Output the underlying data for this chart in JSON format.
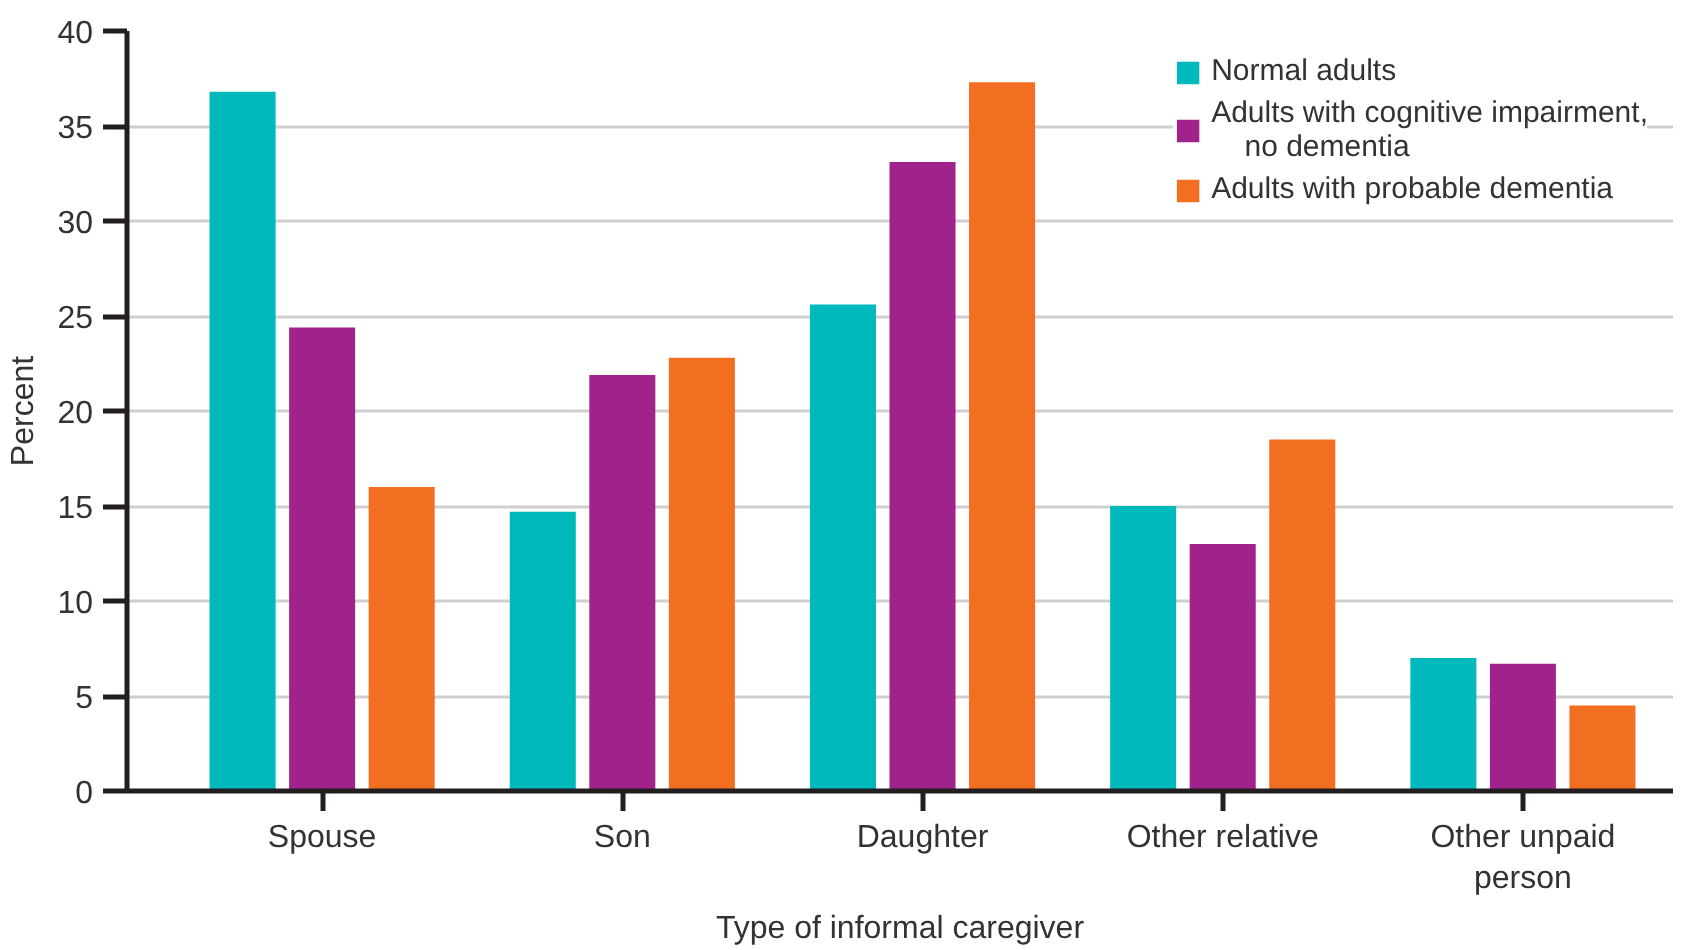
{
  "chart_data": {
    "type": "bar",
    "xlabel": "Type of informal caregiver",
    "ylabel": "Percent",
    "categories": [
      "Spouse",
      "Son",
      "Daughter",
      "Other relative",
      "Other unpaid person"
    ],
    "series": [
      {
        "name": "Normal adults",
        "color": "#00b9bd",
        "values": [
          36.8,
          14.7,
          25.6,
          15.0,
          7.0
        ]
      },
      {
        "name": "Adults with cognitive impairment, no dementia",
        "color": "#a0238b",
        "values": [
          24.4,
          21.9,
          33.1,
          13.0,
          6.7
        ]
      },
      {
        "name": "Adults with probable dementia",
        "color": "#f26f21",
        "values": [
          16.0,
          22.8,
          37.3,
          18.5,
          4.5
        ]
      }
    ],
    "ylim": [
      0,
      40
    ],
    "yticks": [
      0,
      5,
      10,
      15,
      20,
      25,
      30,
      35,
      40
    ],
    "grid": "y",
    "legend": "top right"
  }
}
